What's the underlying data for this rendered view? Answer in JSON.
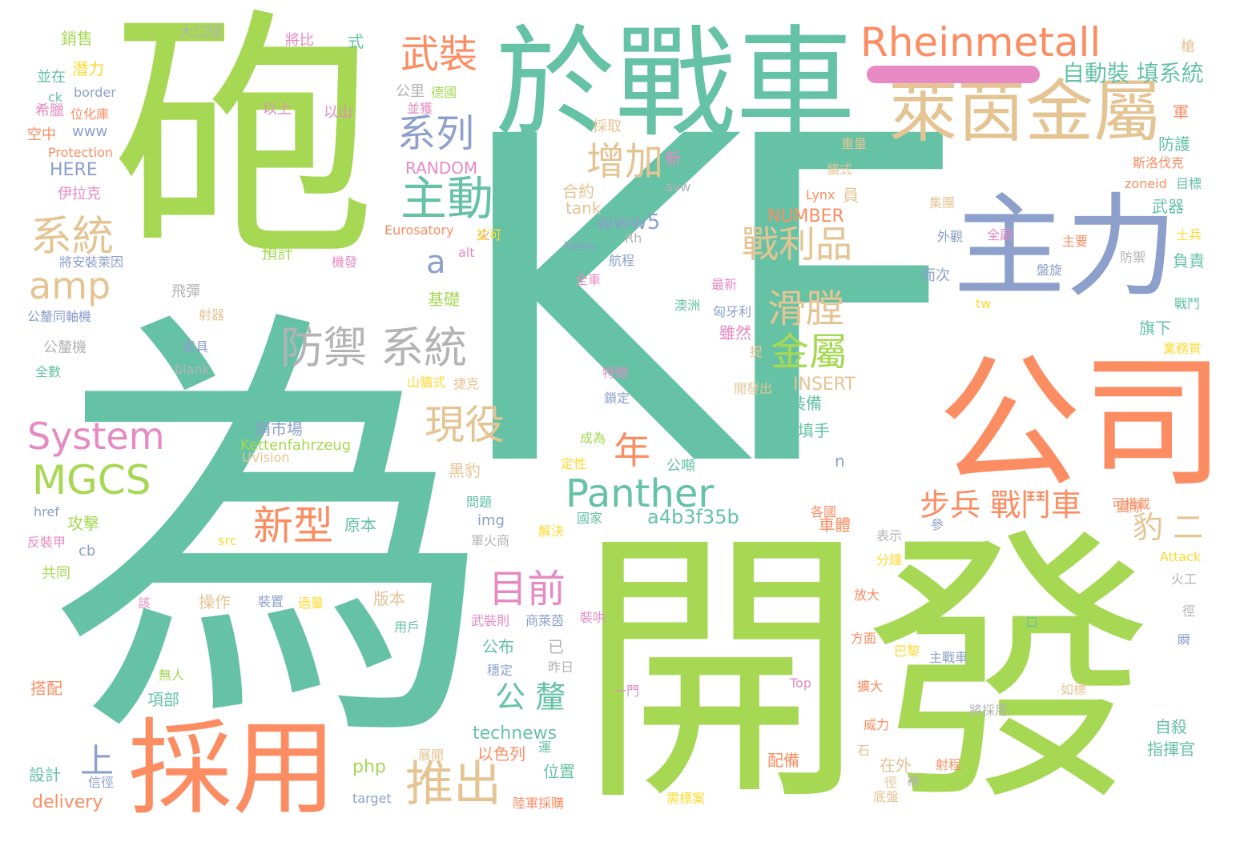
{
  "title": "word cloud",
  "palette": {
    "teal": "#66c2a5",
    "orange": "#fc8d62",
    "blue": "#8da0cb",
    "pink": "#e78ac3",
    "green": "#a6d854",
    "yellow": "#ffd92f",
    "tan": "#e5c494",
    "grey": "#b3b3b3"
  },
  "words": [
    {
      "id": "kf",
      "text": "KF",
      "color": "#66c2a5"
    },
    {
      "id": "pao",
      "text": "砲",
      "color": "#a6d854"
    },
    {
      "id": "wei",
      "text": "為",
      "color": "#66c2a5"
    },
    {
      "id": "kaifa",
      "text": "開發",
      "color": "#a6d854"
    },
    {
      "id": "yu-zhanche",
      "text": "於戰車",
      "color": "#66c2a5"
    },
    {
      "id": "gongsi",
      "text": "公司",
      "color": "#fc8d62"
    },
    {
      "id": "zhuli",
      "text": "主力",
      "color": "#8da0cb"
    },
    {
      "id": "caiyong",
      "text": "採用",
      "color": "#fc8d62"
    },
    {
      "id": "rheinmetall",
      "text": "Rheinmetall",
      "color": "#fc8d62"
    },
    {
      "id": "laiyinjinshu",
      "text": "萊茵金屬",
      "color": "#e5c494"
    },
    {
      "id": "panther",
      "text": "Panther",
      "color": "#66c2a5"
    },
    {
      "id": "system",
      "text": "System",
      "color": "#e78ac3"
    },
    {
      "id": "mgcs",
      "text": "MGCS",
      "color": "#a6d854"
    },
    {
      "id": "wuzhuang",
      "text": "武裝",
      "color": "#fc8d62"
    },
    {
      "id": "xilie",
      "text": "系列",
      "color": "#8da0cb"
    },
    {
      "id": "zhudong",
      "text": "主動",
      "color": "#66c2a5"
    },
    {
      "id": "zengjia",
      "text": "增加",
      "color": "#e5c494"
    },
    {
      "id": "xitong1",
      "text": "系統",
      "color": "#e5c494"
    },
    {
      "id": "amp",
      "text": "amp",
      "color": "#e5c494"
    },
    {
      "id": "a",
      "text": "a",
      "color": "#8da0cb"
    },
    {
      "id": "zhanlipin",
      "text": "戰利品",
      "color": "#e5c494"
    },
    {
      "id": "huatang",
      "text": "滑膛",
      "color": "#e5c494"
    },
    {
      "id": "jinshu",
      "text": "金屬",
      "color": "#a6d854"
    },
    {
      "id": "fangyu-xitong",
      "text": "防禦 系統",
      "color": "#b3b3b3"
    },
    {
      "id": "xianyi",
      "text": "現役",
      "color": "#e5c494"
    },
    {
      "id": "nian",
      "text": "年",
      "color": "#fc8d62"
    },
    {
      "id": "xinxing",
      "text": "新型",
      "color": "#fc8d62"
    },
    {
      "id": "mubiao",
      "text": "目前",
      "color": "#e78ac3"
    },
    {
      "id": "tuichu",
      "text": "推出",
      "color": "#e5c494"
    },
    {
      "id": "gongzhang",
      "text": "公 釐",
      "color": "#66c2a5"
    },
    {
      "id": "shang",
      "text": "上",
      "color": "#8da0cb"
    },
    {
      "id": "bubing",
      "text": "步兵 戰鬥車",
      "color": "#fc8d62"
    },
    {
      "id": "bao-er",
      "text": "豹 二",
      "color": "#e5c494"
    },
    {
      "id": "zidongzhuang",
      "text": "自動裝 填系統",
      "color": "#66c2a5"
    },
    {
      "id": "a4b3f35b",
      "text": "a4b3f35b",
      "color": "#66c2a5"
    },
    {
      "id": "technews",
      "text": "technews",
      "color": "#66c2a5"
    },
    {
      "id": "www5",
      "text": "www5",
      "color": "#8da0cb"
    },
    {
      "id": "random",
      "text": "RANDOM",
      "color": "#e78ac3"
    },
    {
      "id": "number",
      "text": "NUMBER",
      "color": "#fc8d62"
    },
    {
      "id": "insert",
      "text": "INSERT",
      "color": "#e5c494"
    },
    {
      "id": "eurosatory",
      "text": "Eurosatory",
      "color": "#fc8d62"
    },
    {
      "id": "protection",
      "text": "Protection",
      "color": "#fc8d62"
    },
    {
      "id": "here",
      "text": "HERE",
      "color": "#8da0cb"
    },
    {
      "id": "www",
      "text": "www",
      "color": "#8da0cb"
    },
    {
      "id": "border",
      "text": "border",
      "color": "#8da0cb"
    },
    {
      "id": "ck",
      "text": "ck",
      "color": "#66c2a5"
    },
    {
      "id": "delivery",
      "text": "delivery",
      "color": "#fc8d62"
    },
    {
      "id": "php",
      "text": "php",
      "color": "#a6d854"
    },
    {
      "id": "target",
      "text": "target",
      "color": "#8da0cb"
    },
    {
      "id": "href",
      "text": "href",
      "color": "#8da0cb"
    },
    {
      "id": "cb",
      "text": "cb",
      "color": "#8da0cb"
    },
    {
      "id": "src",
      "text": "src",
      "color": "#ffd92f"
    },
    {
      "id": "img",
      "text": "img",
      "color": "#8da0cb"
    },
    {
      "id": "blank",
      "text": "blank",
      "color": "#b3b3b3"
    },
    {
      "id": "tank",
      "text": "tank",
      "color": "#e5c494"
    },
    {
      "id": "avw",
      "text": "avw",
      "color": "#b3b3b3"
    },
    {
      "id": "hero",
      "text": "Hero",
      "color": "#8da0cb"
    },
    {
      "id": "rh",
      "text": "Rh",
      "color": "#b3b3b3"
    },
    {
      "id": "alt",
      "text": "alt",
      "color": "#e78ac3"
    },
    {
      "id": "lynx",
      "text": "Lynx",
      "color": "#fc8d62"
    },
    {
      "id": "zoneid",
      "text": "zoneid",
      "color": "#fc8d62"
    },
    {
      "id": "tw",
      "text": "tw",
      "color": "#ffd92f"
    },
    {
      "id": "top",
      "text": "Top",
      "color": "#e78ac3"
    },
    {
      "id": "attack",
      "text": "Attack",
      "color": "#ffd92f"
    },
    {
      "id": "n",
      "text": "n",
      "color": "#8da0cb"
    },
    {
      "id": "kettenfahrzeug",
      "text": "Kettenfahrzeug",
      "color": "#a6d854"
    },
    {
      "id": "uvision",
      "text": "UVision",
      "color": "#e5c494"
    },
    {
      "id": "xiaoshou",
      "text": "銷售",
      "color": "#a6d854"
    },
    {
      "id": "dakoujing",
      "text": "大口徑",
      "color": "#b3b3b3"
    },
    {
      "id": "jiangbi",
      "text": "將比",
      "color": "#e78ac3"
    },
    {
      "id": "shi",
      "text": "式",
      "color": "#66c2a5"
    },
    {
      "id": "qianli",
      "text": "潛力",
      "color": "#ffd92f"
    },
    {
      "id": "bingzai",
      "text": "並在",
      "color": "#66c2a5"
    },
    {
      "id": "gongli",
      "text": "公里",
      "color": "#b3b3b3"
    },
    {
      "id": "deguo",
      "text": "德國",
      "color": "#a6d854"
    },
    {
      "id": "bingjiang",
      "text": "並獲",
      "color": "#e78ac3"
    },
    {
      "id": "xibu",
      "text": "希臘",
      "color": "#e78ac3"
    },
    {
      "id": "weihuaku",
      "text": "位化庫",
      "color": "#fc8d62"
    },
    {
      "id": "yishang",
      "text": "以上",
      "color": "#e78ac3"
    },
    {
      "id": "yishan",
      "text": "以山",
      "color": "#e78ac3"
    },
    {
      "id": "kongzhong",
      "text": "空中",
      "color": "#fc8d62"
    },
    {
      "id": "caiqu",
      "text": "採取",
      "color": "#e5c494"
    },
    {
      "id": "yilake",
      "text": "伊拉克",
      "color": "#e78ac3"
    },
    {
      "id": "heyue",
      "text": "合約",
      "color": "#e5c494"
    },
    {
      "id": "xin",
      "text": "新",
      "color": "#e78ac3"
    },
    {
      "id": "jiangan",
      "text": "將安裝萊因",
      "color": "#8da0cb"
    },
    {
      "id": "yuji",
      "text": "預計",
      "color": "#a6d854"
    },
    {
      "id": "jifa",
      "text": "機發",
      "color": "#e78ac3"
    },
    {
      "id": "fei-dan",
      "text": "飛彈",
      "color": "#b3b3b3"
    },
    {
      "id": "jichu",
      "text": "基礎",
      "color": "#a6d854"
    },
    {
      "id": "gongli-tongzhou",
      "text": "公釐同軸機",
      "color": "#8da0cb"
    },
    {
      "id": "sheqi",
      "text": "射器",
      "color": "#e5c494"
    },
    {
      "id": "gonglij",
      "text": "公釐機",
      "color": "#b3b3b3"
    },
    {
      "id": "zaiju",
      "text": "載具",
      "color": "#8da0cb"
    },
    {
      "id": "quanshu",
      "text": "全數",
      "color": "#66c2a5"
    },
    {
      "id": "shanmiao",
      "text": "山貓式",
      "color": "#ffd92f"
    },
    {
      "id": "jiekeng",
      "text": "捷克",
      "color": "#e5c494"
    },
    {
      "id": "xiaoshichang",
      "text": "銷市場",
      "color": "#8da0cb"
    },
    {
      "id": "heibao",
      "text": "黑豹",
      "color": "#e5c494"
    },
    {
      "id": "gongji",
      "text": "攻擊",
      "color": "#a6d854"
    },
    {
      "id": "fanzhuangjia",
      "text": "反裝甲",
      "color": "#e78ac3"
    },
    {
      "id": "gongtong",
      "text": "共同",
      "color": "#a6d854"
    },
    {
      "id": "caozuo",
      "text": "操作",
      "color": "#e5c494"
    },
    {
      "id": "zhuangzhi",
      "text": "裝置",
      "color": "#8da0cb"
    },
    {
      "id": "guoliang",
      "text": "過量",
      "color": "#ffd92f"
    },
    {
      "id": "gai",
      "text": "該",
      "color": "#e78ac3"
    },
    {
      "id": "banben",
      "text": "版本",
      "color": "#e5c494"
    },
    {
      "id": "yonghu",
      "text": "用戶",
      "color": "#66c2a5"
    },
    {
      "id": "dapei",
      "text": "搭配",
      "color": "#fc8d62"
    },
    {
      "id": "wuren",
      "text": "無人",
      "color": "#a6d854"
    },
    {
      "id": "xiangbu",
      "text": "項部",
      "color": "#66c2a5"
    },
    {
      "id": "sheji",
      "text": "設計",
      "color": "#66c2a5"
    },
    {
      "id": "xinxi",
      "text": "信徑",
      "color": "#8da0cb"
    },
    {
      "id": "yuanben",
      "text": "原本",
      "color": "#66c2a5"
    },
    {
      "id": "gongbu",
      "text": "公布",
      "color": "#66c2a5"
    },
    {
      "id": "wendingd",
      "text": "穩定",
      "color": "#8da0cb"
    },
    {
      "id": "yi",
      "text": "已",
      "color": "#b3b3b3"
    },
    {
      "id": "zuori",
      "text": "昨日",
      "color": "#b3b3b3"
    },
    {
      "id": "weizhi",
      "text": "位置",
      "color": "#66c2a5"
    },
    {
      "id": "yiselie",
      "text": "以色列",
      "color": "#fc8d62"
    },
    {
      "id": "yun",
      "text": "運",
      "color": "#66c2a5"
    },
    {
      "id": "zhanlan",
      "text": "展開",
      "color": "#e5c494"
    },
    {
      "id": "lujun",
      "text": "陸軍採購",
      "color": "#fc8d62"
    },
    {
      "id": "peibei",
      "text": "配備",
      "color": "#fc8d62"
    },
    {
      "id": "zaiwai",
      "text": "在外",
      "color": "#e5c494"
    },
    {
      "id": "zhuangbei",
      "text": "裝備",
      "color": "#66c2a5"
    },
    {
      "id": "zhuangtianshou",
      "text": "裝填手",
      "color": "#66c2a5"
    },
    {
      "id": "cheti",
      "text": "車體",
      "color": "#fc8d62"
    },
    {
      "id": "geguo",
      "text": "各國",
      "color": "#fc8d62"
    },
    {
      "id": "gongdun",
      "text": "公噸",
      "color": "#66c2a5"
    },
    {
      "id": "chengwei",
      "text": "成為",
      "color": "#a6d854"
    },
    {
      "id": "dingxing",
      "text": "定性",
      "color": "#ffd92f"
    },
    {
      "id": "wenti",
      "text": "問題",
      "color": "#66c2a5"
    },
    {
      "id": "guojia",
      "text": "國家",
      "color": "#66c2a5"
    },
    {
      "id": "jiejue",
      "text": "解決",
      "color": "#ffd92f"
    },
    {
      "id": "junhuoshang",
      "text": "軍火商",
      "color": "#b3b3b3"
    },
    {
      "id": "wuzhuangze",
      "text": "武裝則",
      "color": "#e78ac3"
    },
    {
      "id": "shanglaiyin",
      "text": "商萊茵",
      "color": "#8da0cb"
    },
    {
      "id": "yimen",
      "text": "一門",
      "color": "#e78ac3"
    },
    {
      "id": "zhuanghong",
      "text": "裝哄",
      "color": "#e78ac3"
    },
    {
      "id": "tezheng",
      "text": "特徵",
      "color": "#e78ac3"
    },
    {
      "id": "suoding",
      "text": "鎖定",
      "color": "#8da0cb"
    },
    {
      "id": "kaifachu",
      "text": "開發出",
      "color": "#e5c494"
    },
    {
      "id": "suiran",
      "text": "雖然",
      "color": "#e78ac3"
    },
    {
      "id": "ti",
      "text": "提",
      "color": "#e5c494"
    },
    {
      "id": "aozhou",
      "text": "澳洲",
      "color": "#66c2a5"
    },
    {
      "id": "xiongyali",
      "text": "匈牙利",
      "color": "#8da0cb"
    },
    {
      "id": "zuixin",
      "text": "最新",
      "color": "#e78ac3"
    },
    {
      "id": "hangcheng",
      "text": "航程",
      "color": "#8da0cb"
    },
    {
      "id": "quanche",
      "text": "全車",
      "color": "#e78ac3"
    },
    {
      "id": "zhongliang",
      "text": "重量",
      "color": "#e5c494"
    },
    {
      "id": "maoshi",
      "text": "貓式",
      "color": "#e5c494"
    },
    {
      "id": "yuan",
      "text": "員",
      "color": "#e5c494"
    },
    {
      "id": "jituan",
      "text": "集團",
      "color": "#e5c494"
    },
    {
      "id": "waiguan",
      "text": "外觀",
      "color": "#8da0cb"
    },
    {
      "id": "quanfu",
      "text": "全副",
      "color": "#e78ac3"
    },
    {
      "id": "zhuyao",
      "text": "主要",
      "color": "#fc8d62"
    },
    {
      "id": "panxuan",
      "text": "盤旋",
      "color": "#8da0cb"
    },
    {
      "id": "erci",
      "text": "而次",
      "color": "#8da0cb"
    },
    {
      "id": "fangyu2",
      "text": "防禦",
      "color": "#b3b3b3"
    },
    {
      "id": "qiang",
      "text": "槍",
      "color": "#e5c494"
    },
    {
      "id": "jun",
      "text": "軍",
      "color": "#fc8d62"
    },
    {
      "id": "fanghu",
      "text": "防護",
      "color": "#66c2a5"
    },
    {
      "id": "siluofake",
      "text": "斯洛伐克",
      "color": "#fc8d62"
    },
    {
      "id": "mubiao2",
      "text": "目標",
      "color": "#66c2a5"
    },
    {
      "id": "wuqi",
      "text": "武器",
      "color": "#66c2a5"
    },
    {
      "id": "shibing",
      "text": "士兵",
      "color": "#ffd92f"
    },
    {
      "id": "fuze",
      "text": "負責",
      "color": "#66c2a5"
    },
    {
      "id": "zhandou",
      "text": "戰鬥",
      "color": "#66c2a5"
    },
    {
      "id": "qixia",
      "text": "旗下",
      "color": "#66c2a5"
    },
    {
      "id": "yewu",
      "text": "業務質",
      "color": "#ffd92f"
    },
    {
      "id": "kedazai",
      "text": "可搭載",
      "color": "#fc8d62"
    },
    {
      "id": "guoji",
      "text": "國際",
      "color": "#fc8d62"
    },
    {
      "id": "biaoshi",
      "text": "表示",
      "color": "#b3b3b3"
    },
    {
      "id": "can",
      "text": "參",
      "color": "#8da0cb"
    },
    {
      "id": "fenzhong",
      "text": "分鐘",
      "color": "#ffd92f"
    },
    {
      "id": "huogong",
      "text": "火工",
      "color": "#b3b3b3"
    },
    {
      "id": "kou",
      "text": "口",
      "color": "#66c2a5"
    },
    {
      "id": "fangda",
      "text": "放大",
      "color": "#fc8d62"
    },
    {
      "id": "fangmian",
      "text": "方面",
      "color": "#fc8d62"
    },
    {
      "id": "bali",
      "text": "巴黎",
      "color": "#ffd92f"
    },
    {
      "id": "zhuzhanche",
      "text": "主戰車",
      "color": "#8da0cb"
    },
    {
      "id": "kuoda",
      "text": "擴大",
      "color": "#fc8d62"
    },
    {
      "id": "rubiao",
      "text": "如標",
      "color": "#e5c494"
    },
    {
      "id": "jiangcaiyong",
      "text": "將採用",
      "color": "#b3b3b3"
    },
    {
      "id": "zisha",
      "text": "自殺",
      "color": "#66c2a5"
    },
    {
      "id": "zhihuiguan",
      "text": "指揮官",
      "color": "#66c2a5"
    },
    {
      "id": "weili",
      "text": "威力",
      "color": "#fc8d62"
    },
    {
      "id": "shi2",
      "text": "石",
      "color": "#e5c494"
    },
    {
      "id": "shecheng",
      "text": "射程",
      "color": "#fc8d62"
    },
    {
      "id": "dipan",
      "text": "底盤",
      "color": "#e5c494"
    },
    {
      "id": "xu",
      "text": "需標案",
      "color": "#ffd92f"
    },
    {
      "id": "bu",
      "text": "補",
      "color": "#b3b3b3"
    },
    {
      "id": "de",
      "text": "徑",
      "color": "#b3b3b3"
    },
    {
      "id": "shun",
      "text": "瞬",
      "color": "#8da0cb"
    },
    {
      "id": "huo",
      "text": "火",
      "color": "#e78ac3"
    },
    {
      "id": "jing",
      "text": "徑",
      "color": "#e5c494"
    },
    {
      "id": "bingke",
      "text": "並可",
      "color": "#ffd92f"
    }
  ]
}
